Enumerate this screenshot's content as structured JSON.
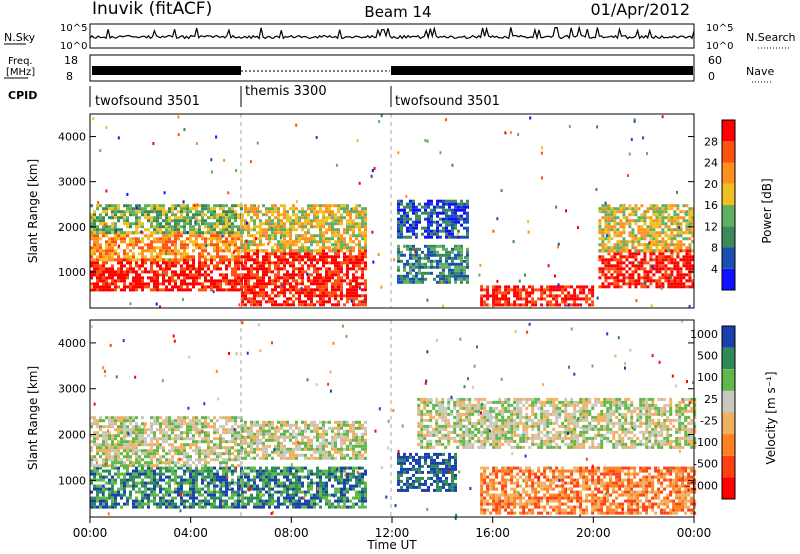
{
  "header": {
    "station": "Inuvik (fitACF)",
    "beam": "Beam 14",
    "date": "01/Apr/2012"
  },
  "noise_panel": {
    "left_label": "N.Sky",
    "right_label": "N.Search",
    "ticks": [
      "10^5",
      "10^0"
    ]
  },
  "freq_panel": {
    "left_label_1": "Freq.",
    "left_label_2": "[MHz]",
    "left_ticks": [
      "18",
      "8"
    ],
    "right_label": "Nave",
    "right_ticks": [
      "60",
      "0"
    ]
  },
  "cpid_panel": {
    "label": "CPID",
    "segments": [
      {
        "name": "twofsound 3501",
        "start_hour": 0,
        "end_hour": 6
      },
      {
        "name": "themis 3300",
        "start_hour": 6,
        "end_hour": 12
      },
      {
        "name": "twofsound 3501",
        "start_hour": 12,
        "end_hour": 24
      }
    ]
  },
  "time_axis": {
    "label": "Time UT",
    "ticks": [
      "00:00",
      "04:00",
      "08:00",
      "12:00",
      "16:00",
      "20:00",
      "00:00"
    ]
  },
  "chart_data": [
    {
      "type": "heatmap",
      "quantity": "Power",
      "ylabel": "Slant Range [km]",
      "xlabel": "Time UT",
      "x_hours": [
        0,
        24
      ],
      "ylim": [
        200,
        4500
      ],
      "y_ticks": [
        1000,
        2000,
        3000,
        4000
      ],
      "colorbar": {
        "label": "Power [dB]",
        "ticks": [
          "4",
          "8",
          "12",
          "16",
          "20",
          "24",
          "28"
        ],
        "colors": [
          "#1010ff",
          "#1a4fb5",
          "#3c8a5a",
          "#5fb060",
          "#f0c020",
          "#ff9020",
          "#ff5010",
          "#ff0000"
        ]
      },
      "regions": [
        {
          "x": [
            0,
            6
          ],
          "y": [
            600,
            1300
          ],
          "level": 7
        },
        {
          "x": [
            0,
            6
          ],
          "y": [
            1300,
            1900
          ],
          "level": 5
        },
        {
          "x": [
            0,
            6
          ],
          "y": [
            1900,
            2500
          ],
          "level": 3
        },
        {
          "x": [
            6,
            11
          ],
          "y": [
            300,
            1500
          ],
          "level": 7
        },
        {
          "x": [
            6,
            11
          ],
          "y": [
            1500,
            2500
          ],
          "level": 4
        },
        {
          "x": [
            12.2,
            15
          ],
          "y": [
            800,
            1600
          ],
          "level": 2
        },
        {
          "x": [
            12.2,
            15
          ],
          "y": [
            1800,
            2600
          ],
          "level": 1
        },
        {
          "x": [
            15.5,
            20
          ],
          "y": [
            280,
            700
          ],
          "level": 7
        },
        {
          "x": [
            20.2,
            24
          ],
          "y": [
            700,
            1500
          ],
          "level": 7
        },
        {
          "x": [
            20.2,
            24
          ],
          "y": [
            1500,
            2500
          ],
          "level": 4
        }
      ]
    },
    {
      "type": "heatmap",
      "quantity": "Velocity",
      "ylabel": "Slant Range [km]",
      "xlabel": "Time UT",
      "x_hours": [
        0,
        24
      ],
      "ylim": [
        200,
        4500
      ],
      "y_ticks": [
        1000,
        2000,
        3000,
        4000
      ],
      "colorbar": {
        "label": "Velocity [m s⁻¹]",
        "ticks": [
          "1000",
          "500",
          "100",
          "25",
          "-25",
          "-100",
          "-500",
          "-1000"
        ],
        "colors": [
          "#1a40b0",
          "#2f8a5a",
          "#5fb848",
          "#c8c8c0",
          "#f0b060",
          "#ff8020",
          "#ff4010",
          "#ff0000"
        ]
      },
      "regions": [
        {
          "x": [
            0,
            6
          ],
          "y": [
            400,
            1300
          ],
          "level": 1
        },
        {
          "x": [
            0,
            6
          ],
          "y": [
            1300,
            2400
          ],
          "level": 3
        },
        {
          "x": [
            6,
            11
          ],
          "y": [
            400,
            1300
          ],
          "level": 1
        },
        {
          "x": [
            6,
            11
          ],
          "y": [
            1500,
            2300
          ],
          "level": 3
        },
        {
          "x": [
            12.2,
            14.5
          ],
          "y": [
            800,
            1600
          ],
          "level": 0
        },
        {
          "x": [
            13,
            24
          ],
          "y": [
            1700,
            2800
          ],
          "level": 3
        },
        {
          "x": [
            15.5,
            24
          ],
          "y": [
            300,
            1300
          ],
          "level": 5
        }
      ]
    }
  ]
}
